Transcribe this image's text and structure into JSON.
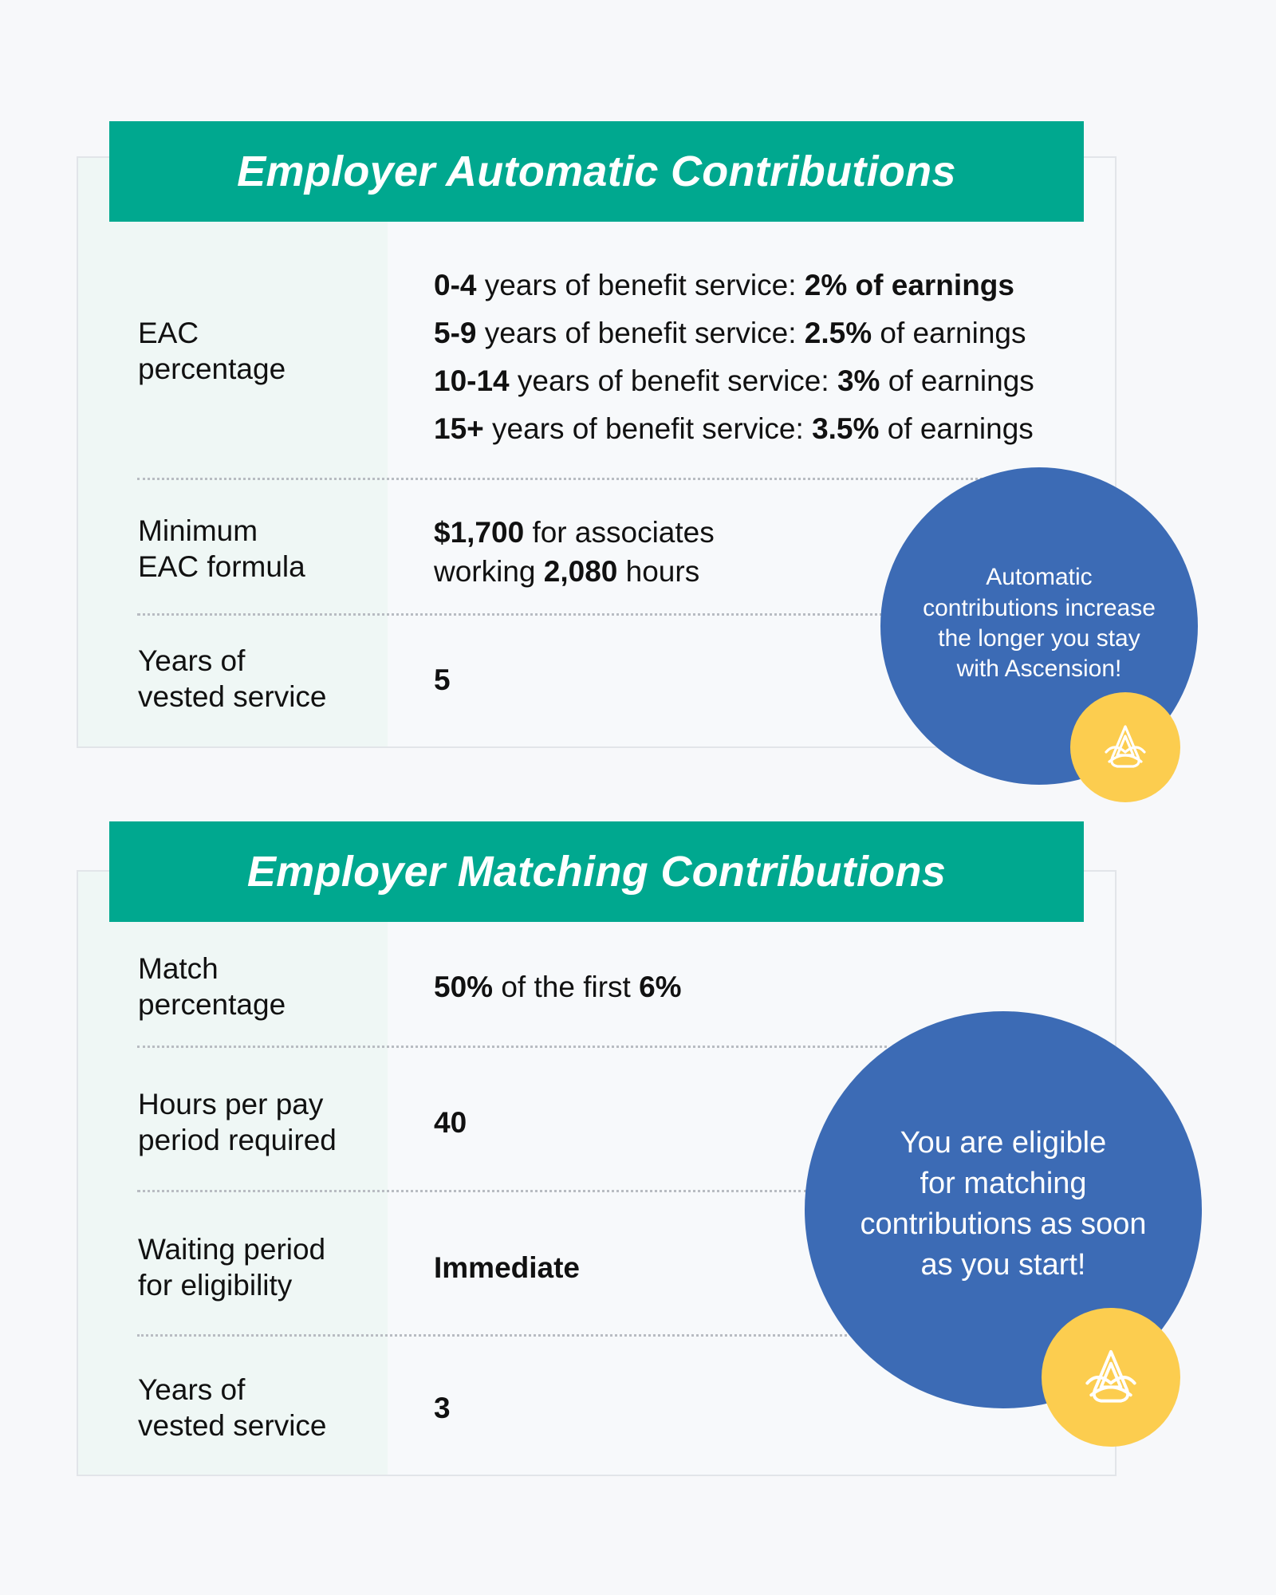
{
  "eac": {
    "title": "Employer Automatic Contributions",
    "rows": [
      {
        "label_line1": "EAC",
        "label_line2": "percentage",
        "tiers": [
          {
            "years": "0-4",
            "mid": " years of benefit service: ",
            "pct": "2% of earnings",
            "tail": ""
          },
          {
            "years": "5-9",
            "mid": " years of benefit service: ",
            "pct": "2.5%",
            "tail": " of earnings"
          },
          {
            "years": "10-14",
            "mid": " years of benefit service: ",
            "pct": "3%",
            "tail": " of earnings"
          },
          {
            "years": "15+",
            "mid": " years of benefit service: ",
            "pct": "3.5%",
            "tail": " of earnings"
          }
        ]
      },
      {
        "label_line1": "Minimum",
        "label_line2": "EAC formula",
        "amount": "$1,700",
        "amount_tail": " for associates",
        "hours_lead": "working ",
        "hours": "2,080",
        "hours_tail": " hours"
      },
      {
        "label_line1": "Years of",
        "label_line2": "vested service",
        "value": "5"
      }
    ],
    "bubble": {
      "lines": [
        "Automatic",
        "contributions increase",
        "the longer you stay",
        "with Ascension!"
      ],
      "logo_icon": "ascension-logo-icon"
    }
  },
  "emc": {
    "title": "Employer Matching Contributions",
    "rows": [
      {
        "label_line1": "Match",
        "label_line2": "percentage",
        "pct": "50%",
        "mid": " of the first ",
        "pct2": "6%"
      },
      {
        "label_line1": "Hours per pay",
        "label_line2": "period required",
        "value": "40"
      },
      {
        "label_line1": "Waiting period",
        "label_line2": "for eligibility",
        "value": "Immediate"
      },
      {
        "label_line1": "Years of",
        "label_line2": "vested service",
        "value": "3"
      }
    ],
    "bubble": {
      "lines": [
        "You are eligible",
        "for matching",
        "contributions as soon",
        "as you start!"
      ],
      "logo_icon": "ascension-logo-icon"
    }
  },
  "colors": {
    "banner": "#00a88f",
    "bubble": "#3c6bb5",
    "badge": "#fccd4f"
  }
}
